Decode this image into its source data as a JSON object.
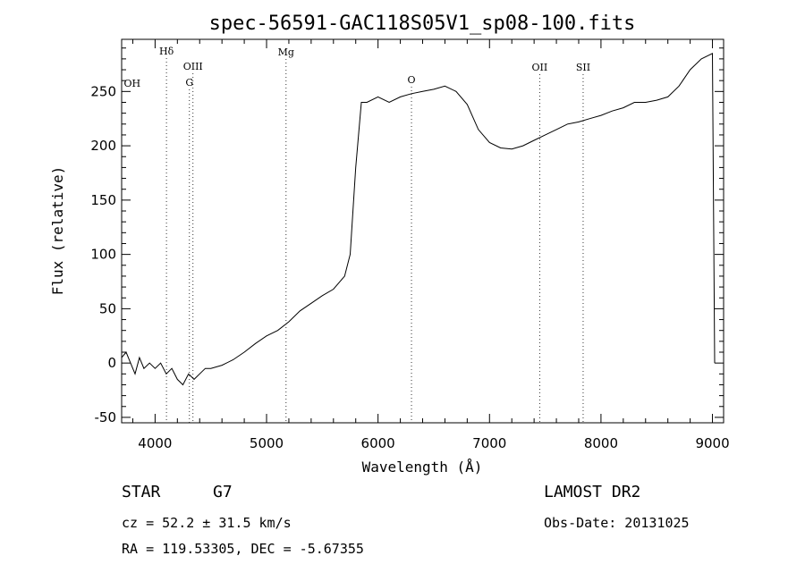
{
  "chart_data": {
    "type": "line",
    "title": "spec-56591-GAC118S05V1_sp08-100.fits",
    "xlabel": "Wavelength (Å)",
    "ylabel": "Flux (relative)",
    "xlim": [
      3700,
      9100
    ],
    "ylim": [
      -55,
      298
    ],
    "xticks": [
      4000,
      5000,
      6000,
      7000,
      8000,
      9000
    ],
    "yticks": [
      -50,
      0,
      50,
      100,
      150,
      200,
      250
    ],
    "grid": false,
    "series": [
      {
        "x": [
          3700,
          3740,
          3780,
          3820,
          3860,
          3900,
          3950,
          4000,
          4050,
          4100,
          4150,
          4200,
          4250,
          4300,
          4350,
          4400,
          4450,
          4500,
          4600,
          4700,
          4800,
          4900,
          5000,
          5100,
          5200,
          5300,
          5400,
          5500,
          5600,
          5700,
          5750,
          5800,
          5850,
          5900,
          6000,
          6100,
          6200,
          6300,
          6400,
          6500,
          6600,
          6700,
          6800,
          6900,
          7000,
          7100,
          7200,
          7300,
          7400,
          7500,
          7600,
          7700,
          7800,
          7900,
          8000,
          8100,
          8200,
          8300,
          8400,
          8500,
          8600,
          8700,
          8800,
          8900,
          9000,
          9020
        ],
        "y": [
          5,
          10,
          0,
          -10,
          5,
          -5,
          0,
          -5,
          0,
          -10,
          -5,
          -15,
          -20,
          -10,
          -15,
          -10,
          -5,
          -5,
          -2,
          3,
          10,
          18,
          25,
          30,
          38,
          48,
          55,
          62,
          68,
          80,
          100,
          180,
          240,
          240,
          245,
          240,
          245,
          248,
          250,
          252,
          255,
          250,
          238,
          215,
          203,
          198,
          197,
          200,
          205,
          210,
          215,
          220,
          222,
          225,
          228,
          232,
          235,
          240,
          240,
          242,
          245,
          255,
          270,
          280,
          285,
          0
        ]
      }
    ],
    "features": [
      {
        "name": "Hδ",
        "x": 4102
      },
      {
        "name": "OIII",
        "x": 4340
      },
      {
        "name": "G",
        "x": 4308
      },
      {
        "name": "Mg",
        "x": 5175
      },
      {
        "name": "OII",
        "x": 7450
      },
      {
        "name": "SII",
        "x": 7840
      },
      {
        "name": "OH",
        "x": 3720
      },
      {
        "name": "O",
        "x": 6300
      }
    ]
  },
  "info": {
    "class_label": "STAR",
    "subclass": "G7",
    "cz": "cz = 52.2 ± 31.5 km/s",
    "coords": "RA = 119.53305, DEC =  -5.67355",
    "survey": "LAMOST DR2",
    "obs_date": "Obs-Date: 20131025"
  }
}
